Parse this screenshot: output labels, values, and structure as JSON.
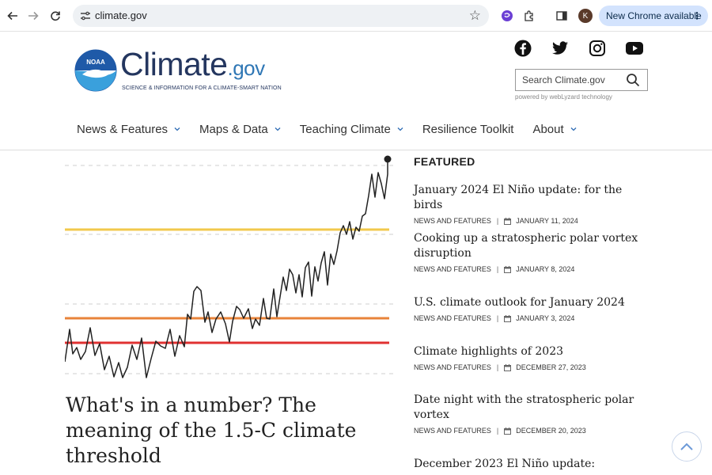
{
  "browser": {
    "url": "climate.gov",
    "avatar_letter": "K",
    "new_chrome_label": "New Chrome available"
  },
  "site": {
    "logo_word": "Climate",
    "logo_suffix": ".gov",
    "noaa_label": "NOAA",
    "tagline": "SCIENCE & INFORMATION FOR A CLIMATE-SMART NATION",
    "search_placeholder": "Search Climate.gov",
    "powered_by": "powered by webLyzard technology",
    "social_icons": [
      "facebook-icon",
      "twitter-icon",
      "instagram-icon",
      "youtube-icon"
    ]
  },
  "nav": {
    "items": [
      {
        "label": "News & Features",
        "dropdown": true
      },
      {
        "label": "Maps & Data",
        "dropdown": true
      },
      {
        "label": "Teaching Climate",
        "dropdown": true
      },
      {
        "label": "Resilience Toolkit",
        "dropdown": false
      },
      {
        "label": "About",
        "dropdown": true
      }
    ]
  },
  "hero": {
    "title": "What's in a number? The meaning of the 1.5-C climate threshold",
    "colors": {
      "yellow": "#f2c94c",
      "orange": "#e8833a",
      "red": "#e03131"
    }
  },
  "featured": {
    "label": "FEATURED",
    "items": [
      {
        "title": "January 2024 El Niño update: for the birds",
        "category": "NEWS AND FEATURES",
        "date": "JANUARY 11, 2024"
      },
      {
        "title": "Cooking up a stratospheric polar vortex disruption",
        "category": "NEWS AND FEATURES",
        "date": "JANUARY 8, 2024"
      },
      {
        "title": "U.S. climate outlook for January 2024",
        "category": "NEWS AND FEATURES",
        "date": "JANUARY 3, 2024"
      },
      {
        "title": "Climate highlights of 2023",
        "category": "NEWS AND FEATURES",
        "date": "DECEMBER 27, 2023"
      },
      {
        "title": "Date night with the stratospheric polar vortex",
        "category": "NEWS AND FEATURES",
        "date": "DECEMBER 20, 2023"
      },
      {
        "title": "December 2023 El Niño update:",
        "category": "",
        "date": ""
      }
    ]
  }
}
